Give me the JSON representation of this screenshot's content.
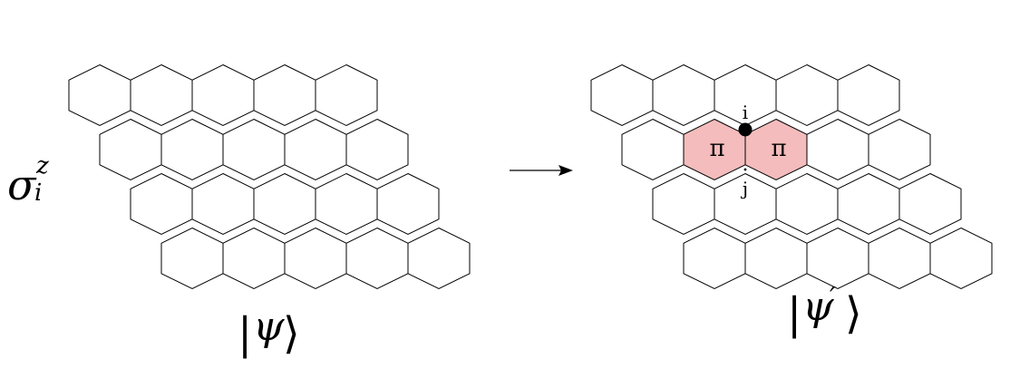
{
  "operator": {
    "symbol": "σ",
    "superscript": "z",
    "subscript": "i"
  },
  "left_state": {
    "bar": "|",
    "symbol": "ψ",
    "bracket": "⟩"
  },
  "right_state": {
    "bar": "|",
    "symbol": "ψ",
    "prime": "′",
    "bracket": "⟩"
  },
  "flux_label": "π",
  "site_i_label": "i",
  "site_j_label": "j",
  "colors": {
    "flux_fill": "#f4bcbc",
    "line": "#000000",
    "background": "#ffffff"
  },
  "lattice": {
    "rows": 4,
    "hexagons_per_row": 5
  }
}
